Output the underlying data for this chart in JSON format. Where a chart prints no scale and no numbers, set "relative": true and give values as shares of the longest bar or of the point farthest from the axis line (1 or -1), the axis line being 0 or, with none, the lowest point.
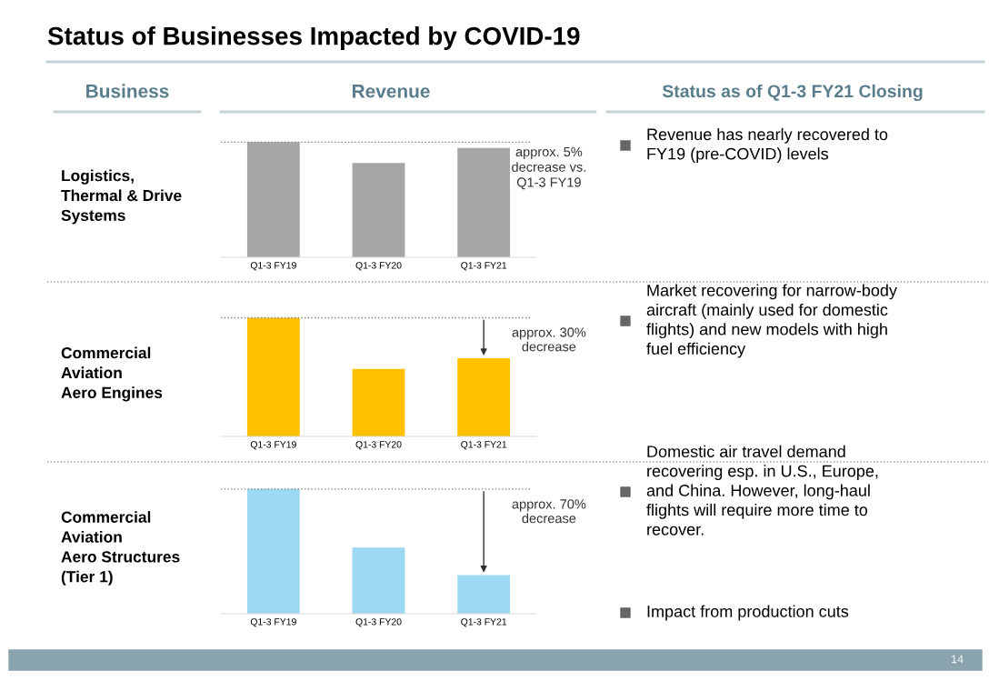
{
  "chart_data": [
    {
      "type": "other",
      "title": "Status of Businesses Impacted by COVID-19",
      "annotations": [
        "Business",
        "Revenue",
        "Status as of Q1-3 FY21 Closing",
        "14"
      ]
    },
    {
      "type": "bar",
      "title": "Logistics,\nThermal & Drive\nSystems",
      "categories": [
        "Q1-3 FY19",
        "Q1-3 FY20",
        "Q1-3 FY21"
      ],
      "values": [
        1,
        0.82,
        0.95
      ],
      "color": "#a6a6a6",
      "relative": true,
      "ref_lines": [
        {
          "axis": "y",
          "value": 1,
          "line_style": "dotted",
          "color": "#7f7f7f"
        }
      ],
      "annotations": [
        "approx. 5%\ndecrease vs.\nQ1-3 FY19",
        "Revenue has nearly recovered to\nFY19 (pre-COVID) levels"
      ]
    },
    {
      "type": "bar",
      "title": "Commercial\nAviation\nAero Engines",
      "categories": [
        "Q1-3 FY19",
        "Q1-3 FY20",
        "Q1-3 FY21"
      ],
      "values": [
        1,
        0.57,
        0.66
      ],
      "color": "#ffc000",
      "relative": true,
      "ref_lines": [
        {
          "axis": "y",
          "value": 1,
          "line_style": "dotted",
          "color": "#7f7f7f"
        }
      ],
      "annotations": [
        "approx. 30%\ndecrease",
        "Market recovering for narrow-body\naircraft (mainly used for domestic\nflights) and new models with high\nfuel efficiency"
      ]
    },
    {
      "type": "bar",
      "title": "Commercial\nAviation\nAero Structures\n(Tier 1)",
      "categories": [
        "Q1-3 FY19",
        "Q1-3 FY20",
        "Q1-3 FY21"
      ],
      "values": [
        1,
        0.53,
        0.31
      ],
      "color": "#9dd9f3",
      "relative": true,
      "ref_lines": [
        {
          "axis": "y",
          "value": 1,
          "line_style": "dotted",
          "color": "#7f7f7f"
        }
      ],
      "annotations": [
        "approx. 70%\ndecrease",
        "Domestic air travel demand\nrecovering esp. in U.S., Europe,\nand China. However, long-haul\nflights will require more time to\nrecover.",
        "Impact from production cuts"
      ]
    }
  ]
}
